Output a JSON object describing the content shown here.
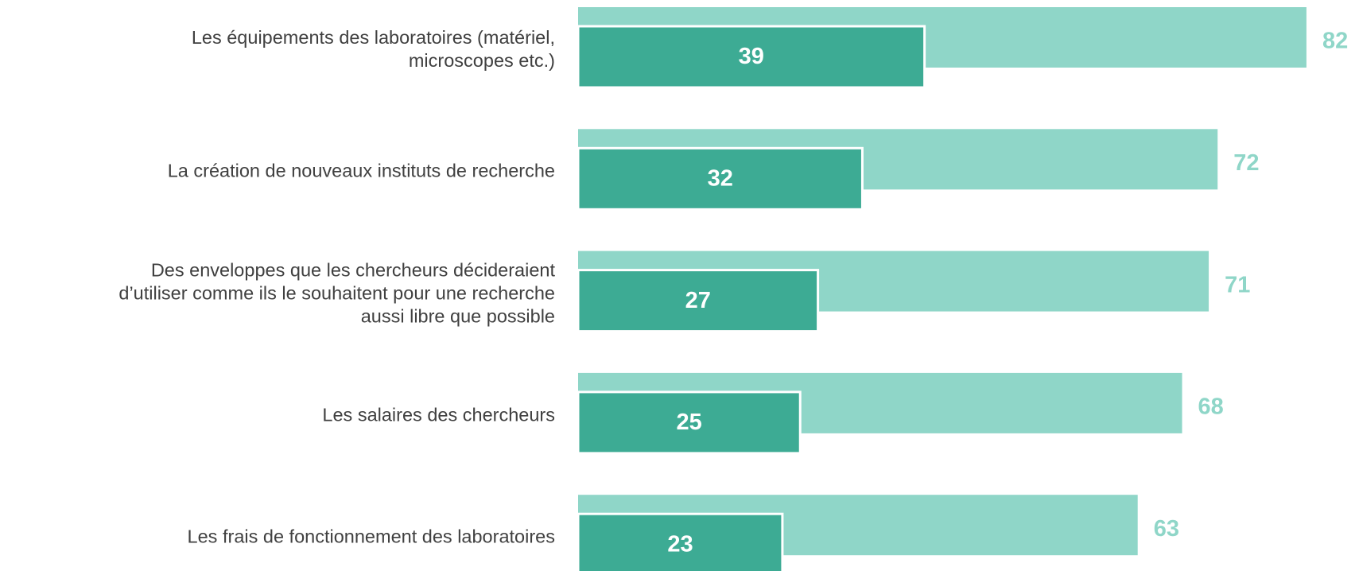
{
  "chart_data": {
    "type": "bar",
    "orientation": "horizontal",
    "categories": [
      "Les équipements des laboratoires (matériel,\nmicroscopes etc.)",
      "La création de nouveaux instituts de recherche",
      "Des enveloppes que les chercheurs décideraient\nd’utiliser comme ils le souhaitent pour une recherche\naussi libre que possible",
      "Les salaires des chercheurs",
      "Les frais de fonctionnement des laboratoires"
    ],
    "series": [
      {
        "color": "#8fd6c8",
        "values": [
          82,
          72,
          71,
          68,
          63
        ]
      },
      {
        "color": "#3dab94",
        "values": [
          39,
          32,
          27,
          25,
          23
        ]
      }
    ]
  }
}
